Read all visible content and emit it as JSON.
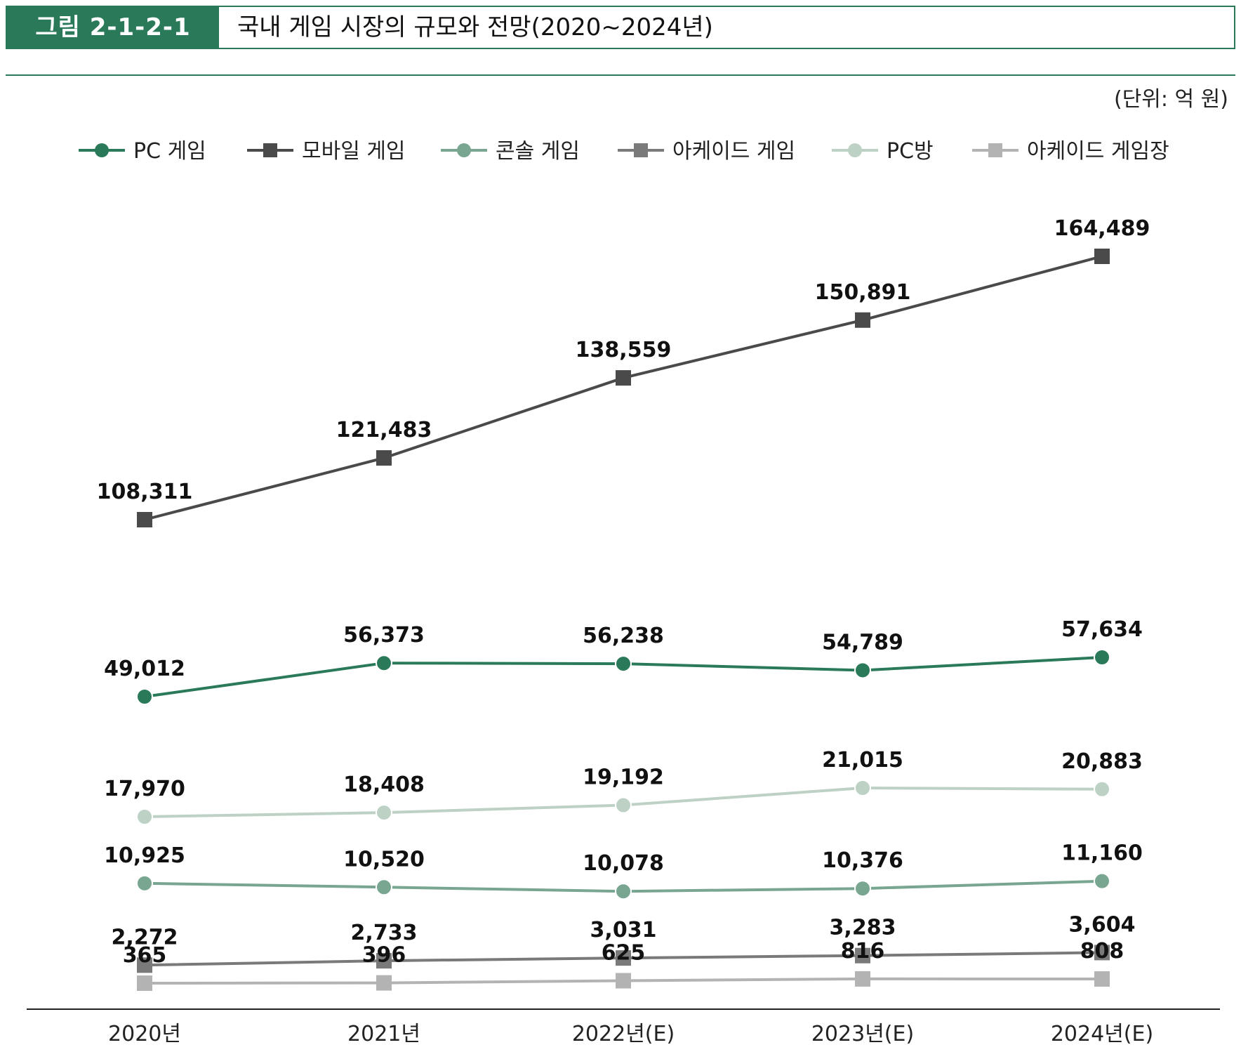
{
  "figure": {
    "label": "그림 2-1-2-1",
    "title": "국내 게임 시장의 규모와 전망(2020~2024년)",
    "unit": "(단위: 억 원)"
  },
  "chart_data": {
    "type": "line",
    "title": "국내 게임 시장의 규모와 전망(2020~2024년)",
    "categories": [
      "2020년",
      "2021년",
      "2022년(E)",
      "2023년(E)",
      "2024년(E)"
    ],
    "legend_position": "top",
    "series": [
      {
        "name": "PC 게임",
        "marker": "circle",
        "color": "#2a7a5a",
        "values": [
          49012,
          56373,
          56238,
          54789,
          57634
        ],
        "labels": [
          "49,012",
          "56,373",
          "56,238",
          "54,789",
          "57,634"
        ]
      },
      {
        "name": "모바일 게임",
        "marker": "square",
        "color": "#4a4a4a",
        "values": [
          108311,
          121483,
          138559,
          150891,
          164489
        ],
        "labels": [
          "108,311",
          "121,483",
          "138,559",
          "150,891",
          "164,489"
        ]
      },
      {
        "name": "콘솔 게임",
        "marker": "circle",
        "color": "#78a690",
        "values": [
          10925,
          10520,
          10078,
          10376,
          11160
        ],
        "labels": [
          "10,925",
          "10,520",
          "10,078",
          "10,376",
          "11,160"
        ]
      },
      {
        "name": "아케이드 게임",
        "marker": "square",
        "color": "#7a7a7a",
        "values": [
          2272,
          2733,
          3031,
          3283,
          3604
        ],
        "labels": [
          "2,272",
          "2,733",
          "3,031",
          "3,283",
          "3,604"
        ]
      },
      {
        "name": "PC방",
        "marker": "circle",
        "color": "#bdd1c5",
        "values": [
          17970,
          18408,
          19192,
          21015,
          20883
        ],
        "labels": [
          "17,970",
          "18,408",
          "19,192",
          "21,015",
          "20,883"
        ]
      },
      {
        "name": "아케이드 게임장",
        "marker": "square",
        "color": "#b3b3b3",
        "values": [
          365,
          396,
          625,
          816,
          808
        ],
        "labels": [
          "365",
          "396",
          "625",
          "816",
          "808"
        ]
      }
    ]
  }
}
